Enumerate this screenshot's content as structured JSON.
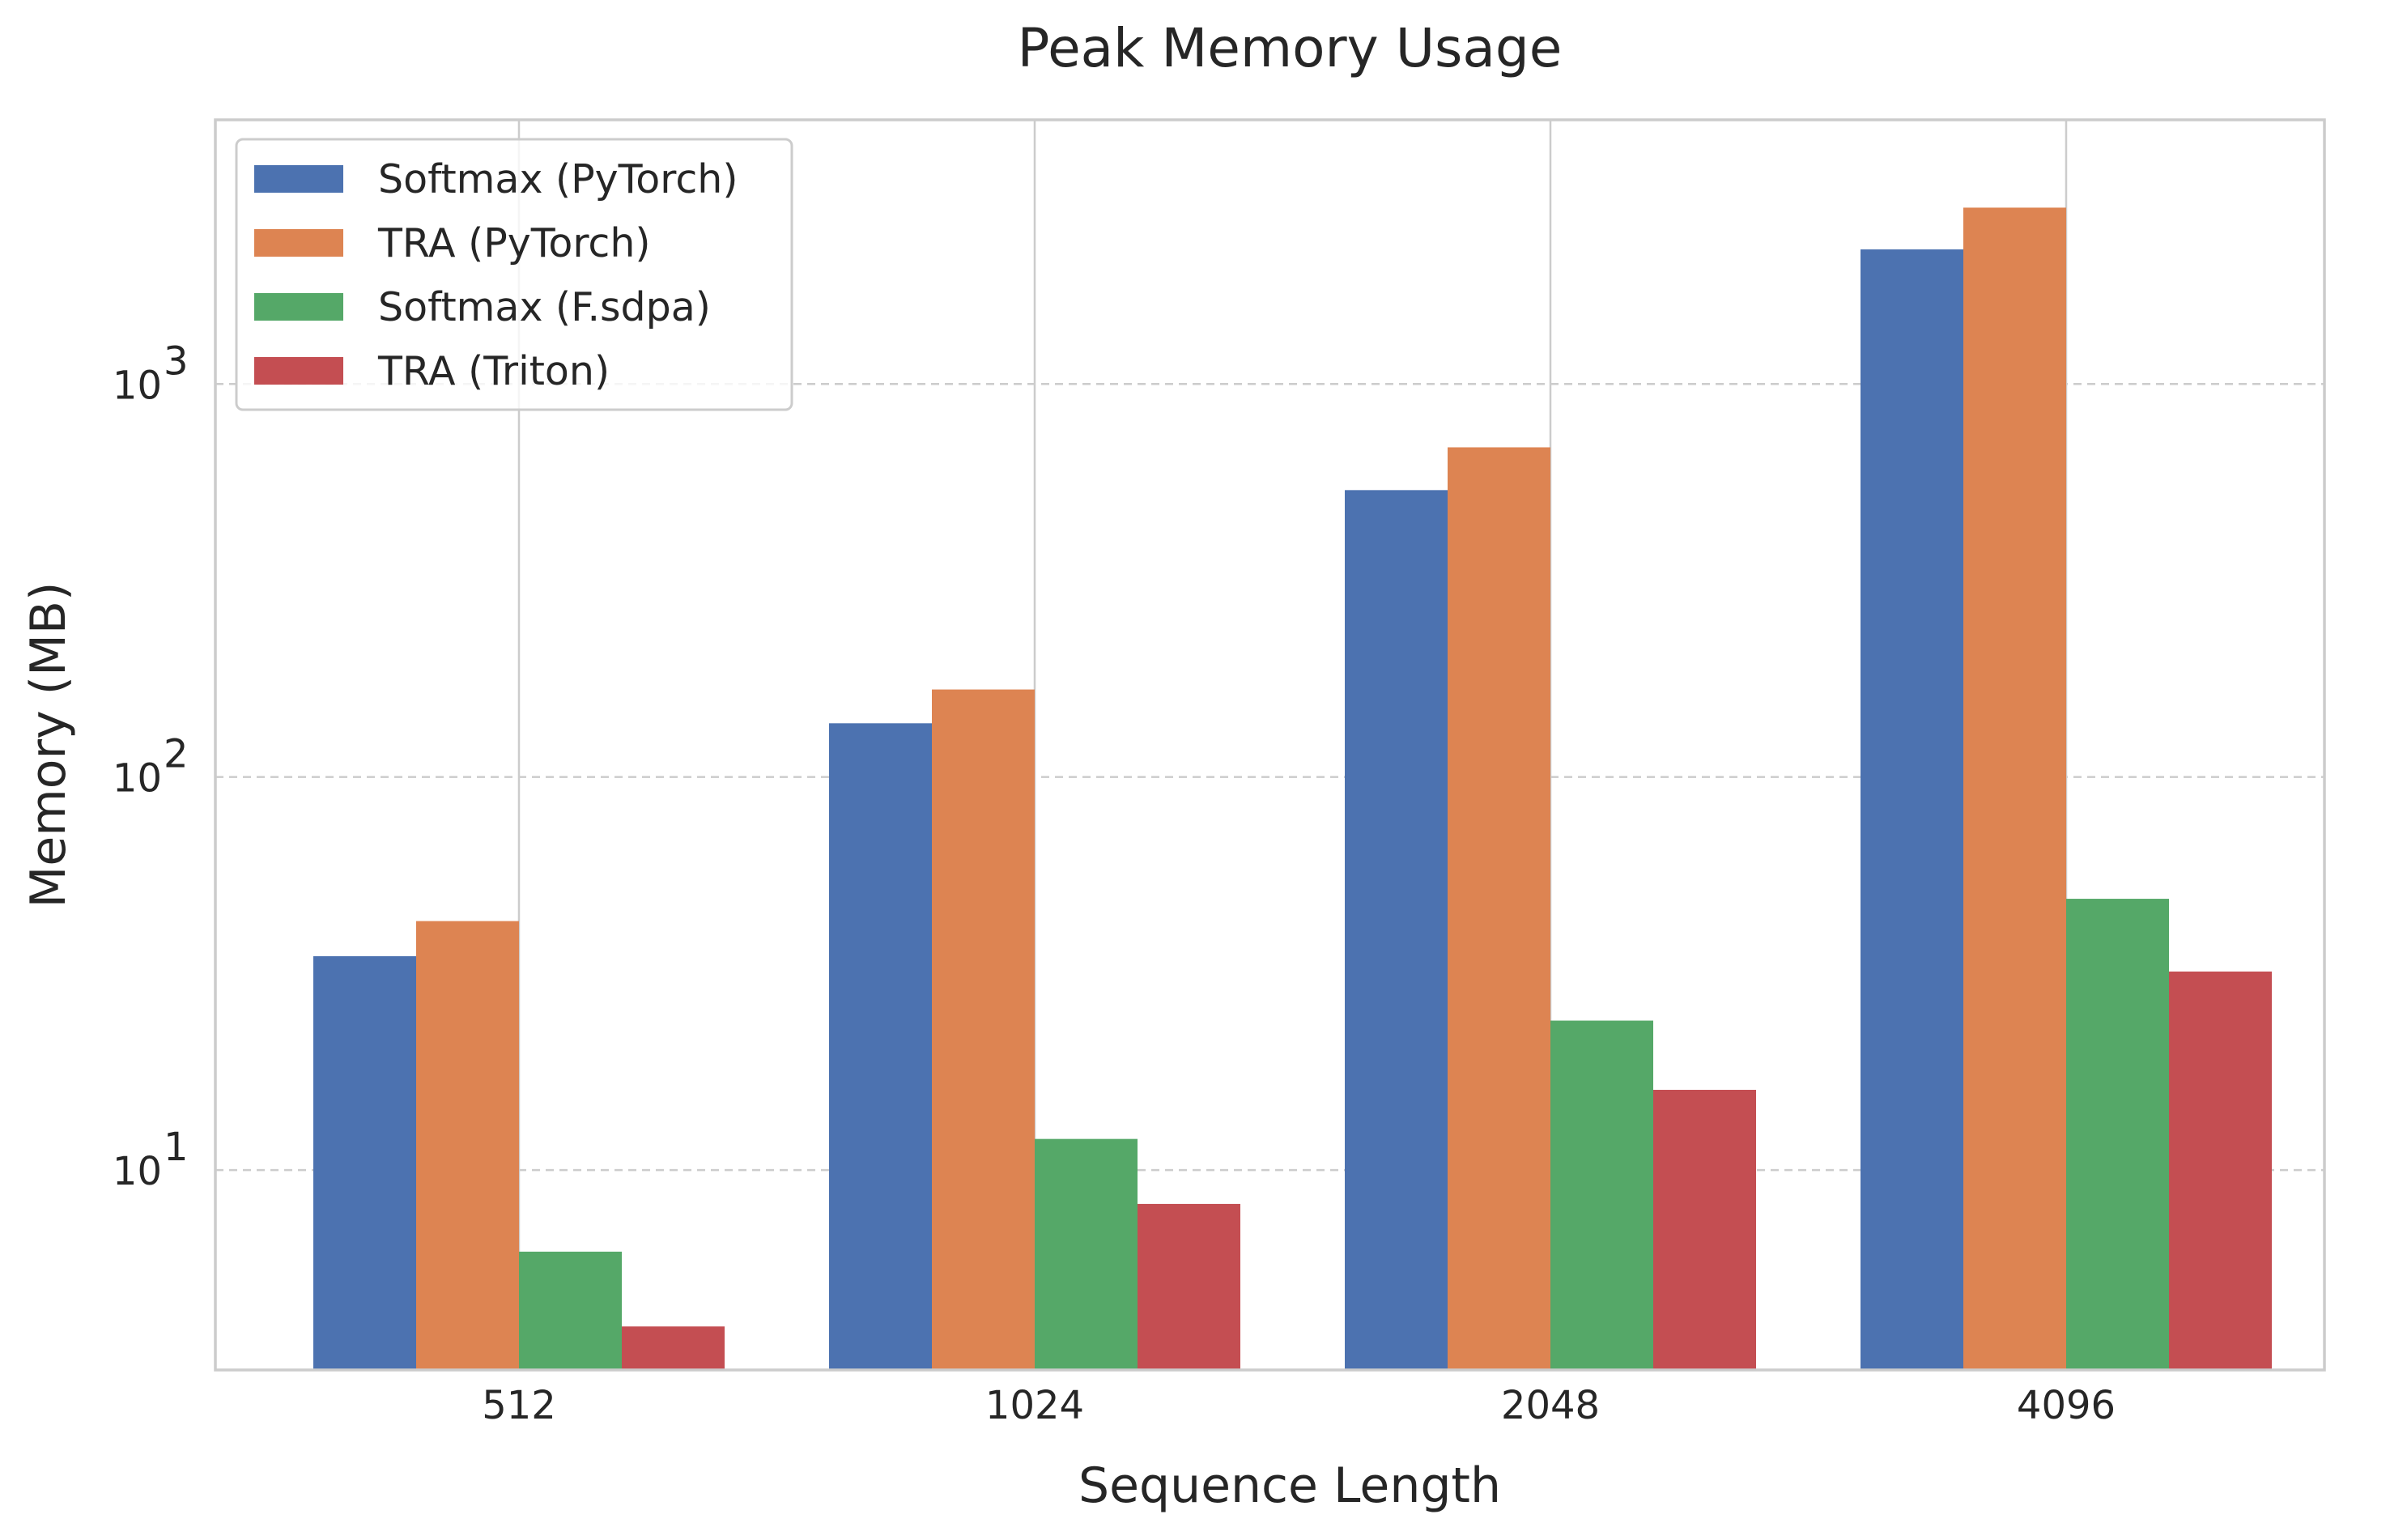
{
  "chart_data": {
    "type": "bar",
    "title": "Peak Memory Usage",
    "xlabel": "Sequence Length",
    "ylabel": "Memory (MB)",
    "yscale": "log",
    "ylim": [
      3.1,
      4700
    ],
    "yticks": [
      {
        "value": 10,
        "base": "10",
        "exp": "1"
      },
      {
        "value": 100,
        "base": "10",
        "exp": "2"
      },
      {
        "value": 1000,
        "base": "10",
        "exp": "3"
      }
    ],
    "categories": [
      "512",
      "1024",
      "2048",
      "4096"
    ],
    "series": [
      {
        "name": "Softmax (PyTorch)",
        "color": "#4c72b0",
        "values": [
          35,
          137,
          537,
          2200
        ]
      },
      {
        "name": "TRA (PyTorch)",
        "color": "#dd8452",
        "values": [
          43,
          167,
          690,
          2810
        ]
      },
      {
        "name": "Softmax (F.sdpa)",
        "color": "#55a868",
        "values": [
          6.2,
          12,
          24,
          49
        ]
      },
      {
        "name": "TRA (Triton)",
        "color": "#c44e52",
        "values": [
          4.0,
          8.2,
          16,
          32
        ]
      }
    ],
    "grid": {
      "x": "solid",
      "y": "dashed"
    },
    "legend": "top-left"
  }
}
